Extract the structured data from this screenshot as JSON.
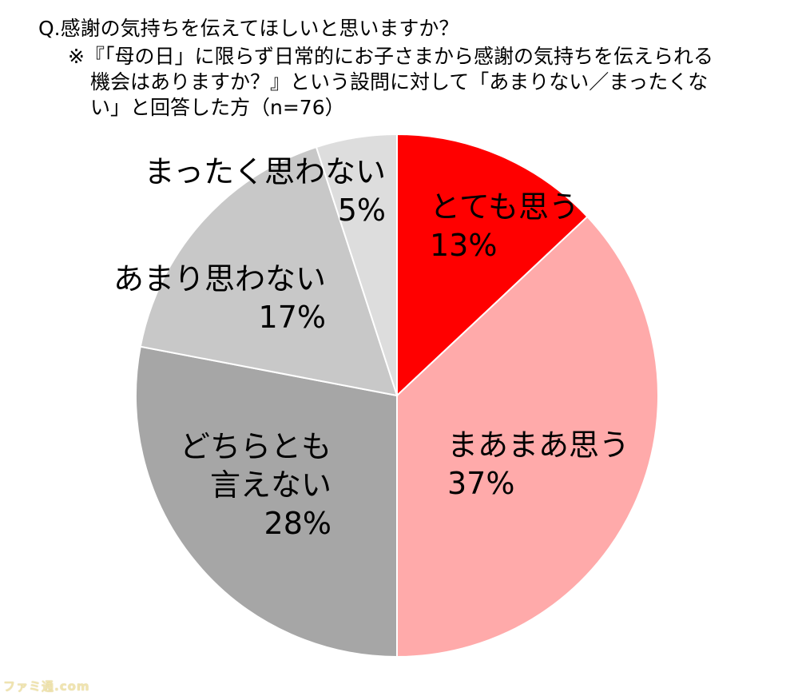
{
  "question": "Q.感謝の気持ちを伝えてほしいと思いますか？",
  "note_lines": [
    "※『「母の日」に限らず日常的にお子さまから感謝の気持ちを伝えられる",
    "機会はありますか？』という設問に対して「あまりない／まったくな",
    "い」と回答した方（n=76）"
  ],
  "watermark": "ファミ通.com",
  "chart_data": {
    "type": "pie",
    "start_angle_deg": 0,
    "direction": "clockwise",
    "slices": [
      {
        "label_lines": [
          "とても思う"
        ],
        "value": 13,
        "value_text": "13%",
        "color": "#ff0000"
      },
      {
        "label_lines": [
          "まあまあ思う"
        ],
        "value": 37,
        "value_text": "37%",
        "color": "#ffaaaa"
      },
      {
        "label_lines": [
          "どちらとも",
          "言えない"
        ],
        "value": 28,
        "value_text": "28%",
        "color": "#a6a6a6"
      },
      {
        "label_lines": [
          "あまり思わない"
        ],
        "value": 17,
        "value_text": "17%",
        "color": "#c8c8c8"
      },
      {
        "label_lines": [
          "まったく思わない"
        ],
        "value": 5,
        "value_text": "5%",
        "color": "#dddddd"
      }
    ]
  }
}
